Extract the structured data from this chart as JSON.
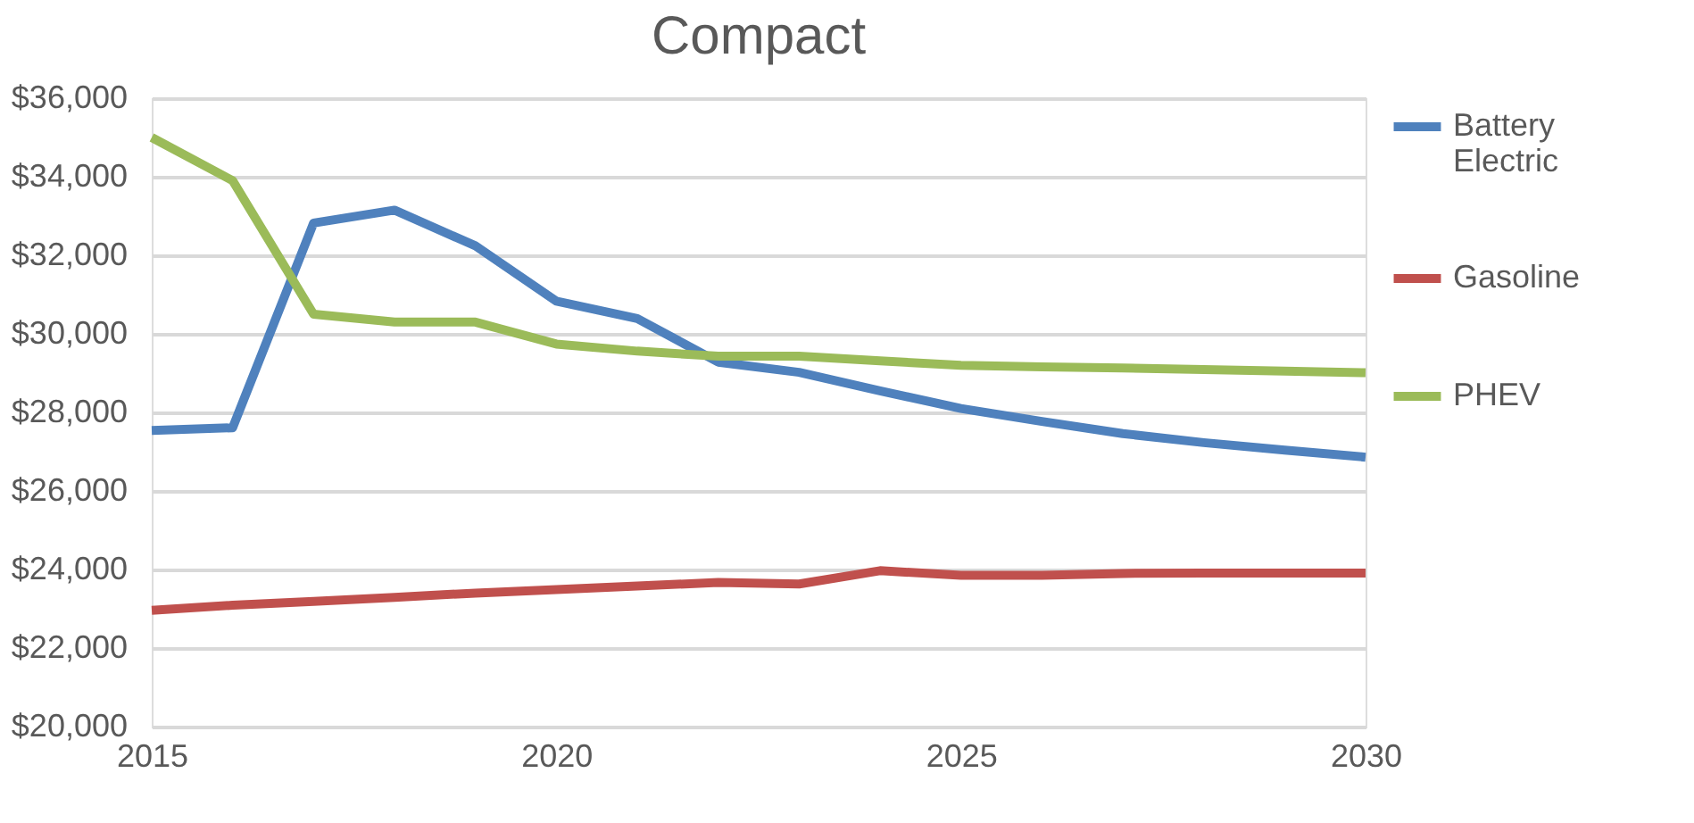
{
  "chart_data": {
    "type": "line",
    "title": "Compact",
    "x": [
      2015,
      2016,
      2017,
      2018,
      2019,
      2020,
      2021,
      2022,
      2023,
      2024,
      2025,
      2026,
      2027,
      2028,
      2029,
      2030
    ],
    "series": [
      {
        "name": "Battery Electric",
        "color": "#4f81bd",
        "values": [
          27540,
          27610,
          32820,
          33150,
          32240,
          30830,
          30390,
          29280,
          29020,
          28550,
          28100,
          27770,
          27460,
          27230,
          27040,
          26860
        ]
      },
      {
        "name": "Gasoline",
        "color": "#c0504d",
        "values": [
          22960,
          23090,
          23190,
          23290,
          23400,
          23490,
          23580,
          23670,
          23630,
          23970,
          23850,
          23850,
          23900,
          23910,
          23910,
          23910
        ]
      },
      {
        "name": "PHEV",
        "color": "#9bbb59",
        "values": [
          35000,
          33900,
          30500,
          30300,
          30300,
          29740,
          29560,
          29430,
          29430,
          29310,
          29200,
          29160,
          29130,
          29090,
          29050,
          29010
        ]
      }
    ],
    "xlim": [
      2015,
      2030
    ],
    "xticks": [
      2015,
      2020,
      2025,
      2030
    ],
    "ylim": [
      20000,
      36000
    ],
    "yticks": [
      {
        "value": 20000,
        "label": "$20,000"
      },
      {
        "value": 22000,
        "label": "$22,000"
      },
      {
        "value": 24000,
        "label": "$24,000"
      },
      {
        "value": 26000,
        "label": "$26,000"
      },
      {
        "value": 28000,
        "label": "$28,000"
      },
      {
        "value": 30000,
        "label": "$30,000"
      },
      {
        "value": 32000,
        "label": "$32,000"
      },
      {
        "value": 34000,
        "label": "$34,000"
      },
      {
        "value": 36000,
        "label": "$36,000"
      }
    ],
    "grid": "y",
    "legend": "right",
    "marker": "none",
    "line_style": "solid"
  }
}
